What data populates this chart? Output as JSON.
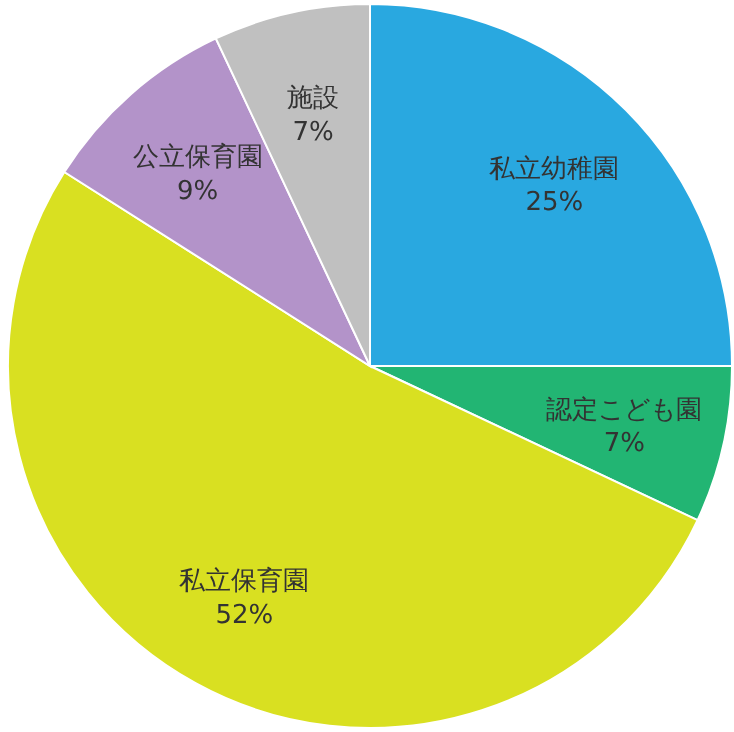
{
  "chart_data": {
    "type": "pie",
    "categories": [
      "私立幼稚園",
      "認定こども園",
      "私立保育園",
      "公立保育園",
      "施設"
    ],
    "values": [
      25,
      7,
      52,
      9,
      7
    ],
    "value_labels": [
      "25%",
      "7%",
      "52%",
      "9%",
      "7%"
    ],
    "colors": [
      "#29a8e0",
      "#22b573",
      "#d9e021",
      "#b393c9",
      "#c0c0c0"
    ]
  }
}
